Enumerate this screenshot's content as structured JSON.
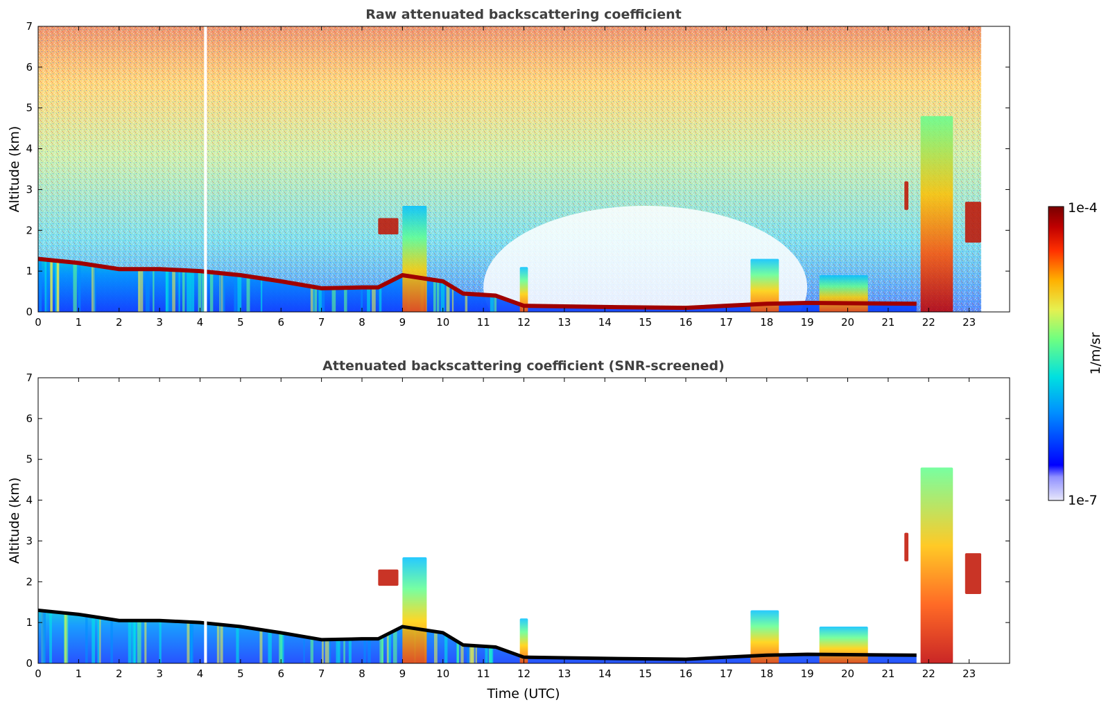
{
  "chart_data": [
    {
      "type": "heatmap",
      "title": "Raw attenuated backscattering coefficient",
      "xlabel": "",
      "ylabel": "Altitude (km)",
      "xlim": [
        0,
        24
      ],
      "ylim": [
        0,
        7
      ],
      "xticks": [
        "0",
        "1",
        "2",
        "3",
        "4",
        "5",
        "6",
        "7",
        "8",
        "9",
        "10",
        "11",
        "12",
        "13",
        "14",
        "15",
        "16",
        "17",
        "18",
        "19",
        "20",
        "21",
        "22",
        "23"
      ],
      "yticks": [
        "0",
        "1",
        "2",
        "3",
        "4",
        "5",
        "6",
        "7"
      ],
      "data_end_time": 23.3,
      "missing_data_gap": [
        4.1,
        4.17
      ],
      "boundary_layer_top_km": [
        [
          0,
          1.3
        ],
        [
          1,
          1.2
        ],
        [
          2,
          1.05
        ],
        [
          3,
          1.05
        ],
        [
          4,
          1.0
        ],
        [
          5,
          0.9
        ],
        [
          6,
          0.75
        ],
        [
          7,
          0.58
        ],
        [
          8,
          0.6
        ],
        [
          8.4,
          0.6
        ],
        [
          9,
          0.9
        ],
        [
          10,
          0.75
        ],
        [
          10.5,
          0.45
        ],
        [
          11.3,
          0.4
        ],
        [
          12,
          0.15
        ],
        [
          14,
          0.12
        ],
        [
          16,
          0.1
        ],
        [
          17,
          0.15
        ],
        [
          18,
          0.2
        ],
        [
          19,
          0.22
        ],
        [
          21.7,
          0.2
        ]
      ],
      "features": [
        {
          "type": "cloud",
          "time": [
            8.4,
            8.9
          ],
          "alt_km": [
            1.9,
            2.3
          ]
        },
        {
          "type": "convective",
          "time": [
            9.0,
            9.6
          ],
          "alt_km": [
            0,
            2.6
          ]
        },
        {
          "type": "convective",
          "time": [
            11.9,
            12.1
          ],
          "alt_km": [
            0,
            1.1
          ]
        },
        {
          "type": "convective",
          "time": [
            17.6,
            18.3
          ],
          "alt_km": [
            0,
            1.3
          ]
        },
        {
          "type": "convective",
          "time": [
            19.3,
            20.5
          ],
          "alt_km": [
            0,
            0.9
          ]
        },
        {
          "type": "cloud",
          "time": [
            21.4,
            21.5
          ],
          "alt_km": [
            2.5,
            3.2
          ]
        },
        {
          "type": "convective",
          "time": [
            21.8,
            22.6
          ],
          "alt_km": [
            0,
            4.8
          ]
        },
        {
          "type": "cloud",
          "time": [
            22.9,
            23.3
          ],
          "alt_km": [
            1.7,
            2.7
          ]
        }
      ]
    },
    {
      "type": "heatmap",
      "title": "Attenuated backscattering coefficient (SNR-screened)",
      "xlabel": "Time (UTC)",
      "ylabel": "Altitude (km)",
      "xlim": [
        0,
        24
      ],
      "ylim": [
        0,
        7
      ],
      "xticks": [
        "0",
        "1",
        "2",
        "3",
        "4",
        "5",
        "6",
        "7",
        "8",
        "9",
        "10",
        "11",
        "12",
        "13",
        "14",
        "15",
        "16",
        "17",
        "18",
        "19",
        "20",
        "21",
        "22",
        "23"
      ],
      "yticks": [
        "0",
        "1",
        "2",
        "3",
        "4",
        "5",
        "6",
        "7"
      ],
      "data_end_time": 23.3
    }
  ],
  "colorbar": {
    "label": "1/m/sr",
    "min_label": "1e-7",
    "max_label": "1e-4",
    "scale": "log",
    "colormap": [
      "#e6e6fa",
      "#0000ff",
      "#0090ff",
      "#00e6e6",
      "#60ff90",
      "#e6f050",
      "#ffb000",
      "#ff4000",
      "#c00000",
      "#800000"
    ]
  }
}
